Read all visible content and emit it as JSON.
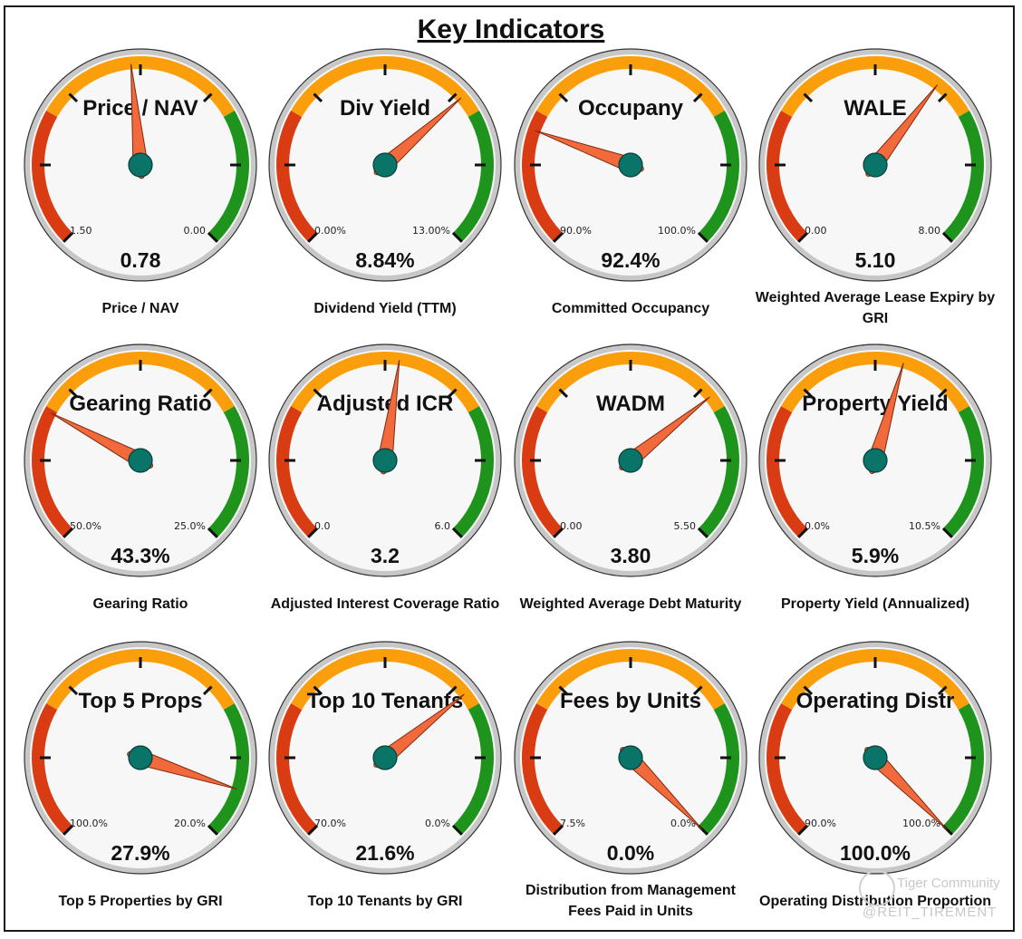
{
  "page": {
    "title": "Key Indicators"
  },
  "watermark": {
    "brand": "Tiger Community",
    "handle": "@REIT_TIREMENT"
  },
  "colors": {
    "red": "#d93b12",
    "orange": "#fb9e0c",
    "green": "#1e941c",
    "needle": "#f26a3c",
    "hub": "#0b7468",
    "face": "#f7f7f7",
    "rim": "#c7c7c7"
  },
  "chart_data": [
    {
      "type": "gauge",
      "title": "Price / NAV",
      "value": 0.78,
      "value_label": "0.78",
      "min_label": "1.50",
      "max_label": "0.00",
      "caption": "Price / NAV",
      "needle_pos": 0.48
    },
    {
      "type": "gauge",
      "title": "Div Yield",
      "value": 8.84,
      "value_label": "8.84%",
      "min_label": "0.00%",
      "max_label": "13.00%",
      "caption": "Dividend Yield (TTM)",
      "needle_pos": 0.68
    },
    {
      "type": "gauge",
      "title": "Occupany",
      "value": 92.4,
      "value_label": "92.4%",
      "min_label": "90.0%",
      "max_label": "100.0%",
      "caption": "Committed Occupancy",
      "needle_pos": 0.24
    },
    {
      "type": "gauge",
      "title": "WALE",
      "value": 5.1,
      "value_label": "5.10",
      "min_label": "0.00",
      "max_label": "8.00",
      "caption": "Weighted Average Lease Expiry by GRI",
      "needle_pos": 0.64
    },
    {
      "type": "gauge",
      "title": "Gearing Ratio",
      "value": 43.3,
      "value_label": "43.3%",
      "min_label": "50.0%",
      "max_label": "25.0%",
      "caption": "Gearing Ratio",
      "needle_pos": 0.27
    },
    {
      "type": "gauge",
      "title": "Adjusted ICR",
      "value": 3.2,
      "value_label": "3.2",
      "min_label": "0.0",
      "max_label": "6.0",
      "caption": "Adjusted Interest Coverage Ratio",
      "needle_pos": 0.53
    },
    {
      "type": "gauge",
      "title": "WADM",
      "value": 3.8,
      "value_label": "3.80",
      "min_label": "0.00",
      "max_label": "5.50",
      "caption": "Weighted Average Debt Maturity",
      "needle_pos": 0.69
    },
    {
      "type": "gauge",
      "title": "Property Yield",
      "value": 5.9,
      "value_label": "5.9%",
      "min_label": "0.0%",
      "max_label": "10.5%",
      "caption": "Property Yield (Annualized)",
      "needle_pos": 0.56
    },
    {
      "type": "gauge",
      "title": "Top 5 Props",
      "value": 27.9,
      "value_label": "27.9%",
      "min_label": "100.0%",
      "max_label": "20.0%",
      "caption": "Top 5 Properties by GRI",
      "needle_pos": 0.9
    },
    {
      "type": "gauge",
      "title": "Top 10 Tenants",
      "value": 21.6,
      "value_label": "21.6%",
      "min_label": "70.0%",
      "max_label": "0.0%",
      "caption": "Top 10 Tenants by GRI",
      "needle_pos": 0.69
    },
    {
      "type": "gauge",
      "title": "Fees by Units",
      "value": 0.0,
      "value_label": "0.0%",
      "min_label": "7.5%",
      "max_label": "0.0%",
      "caption": "Distribution from Management Fees Paid in Units",
      "needle_pos": 1.0
    },
    {
      "type": "gauge",
      "title": "Operating Distr",
      "value": 100.0,
      "value_label": "100.0%",
      "min_label": "90.0%",
      "max_label": "100.0%",
      "caption": "Operating Distribution Proportion",
      "needle_pos": 1.0
    }
  ]
}
